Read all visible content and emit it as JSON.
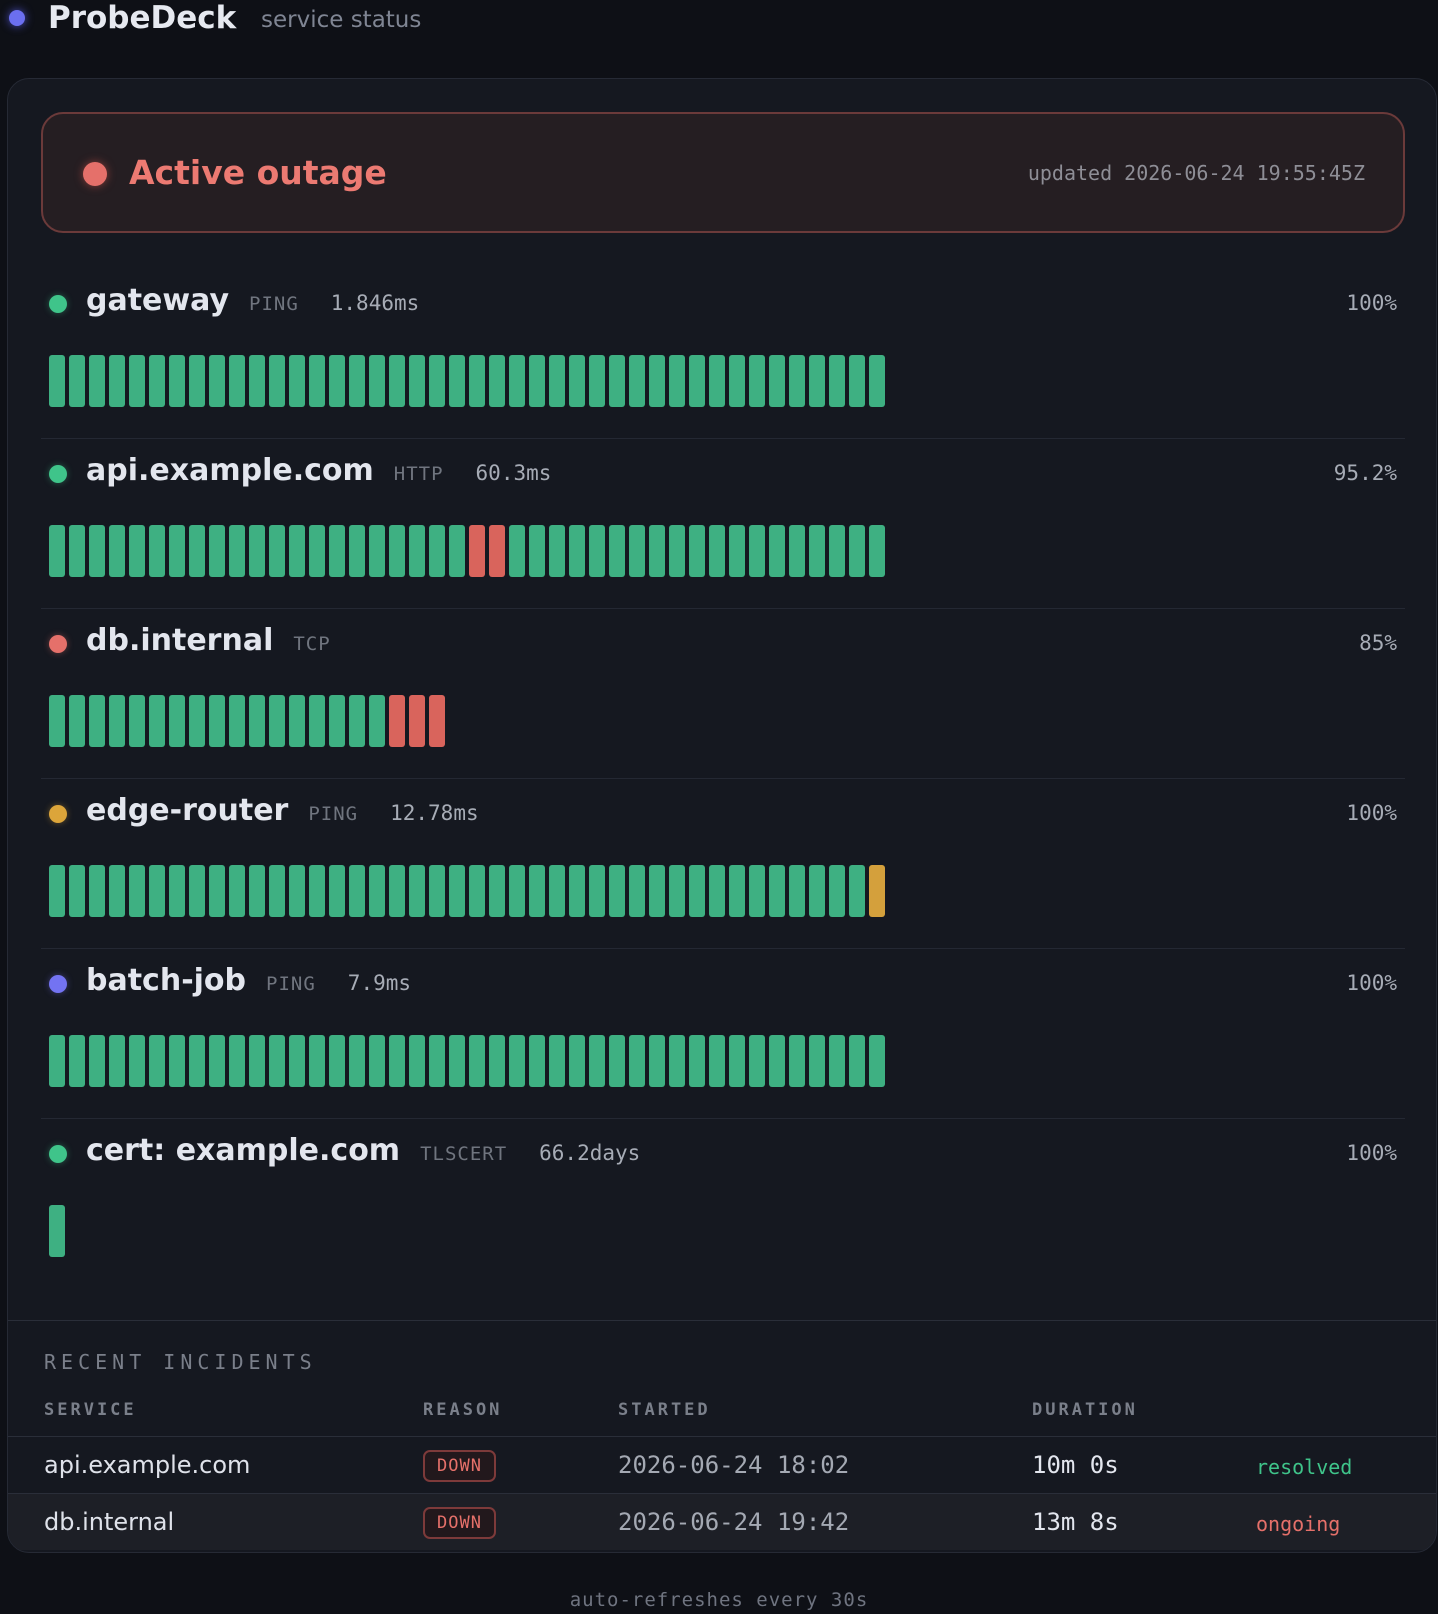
{
  "header": {
    "brand": "ProbeDeck",
    "subtitle": "service status"
  },
  "banner": {
    "title": "Active outage",
    "updated": "updated 2026-06-24 19:55:45Z",
    "color": "#e5706a"
  },
  "colors": {
    "up": "#3eb082",
    "down": "#d9645c",
    "warn": "#d4a03c",
    "paused": "#7373f2"
  },
  "services": [
    {
      "name": "gateway",
      "type": "PING",
      "latency": "1.846ms",
      "uptime": "100%",
      "status_color": "#3fc48a",
      "checks": [
        "up",
        "up",
        "up",
        "up",
        "up",
        "up",
        "up",
        "up",
        "up",
        "up",
        "up",
        "up",
        "up",
        "up",
        "up",
        "up",
        "up",
        "up",
        "up",
        "up",
        "up",
        "up",
        "up",
        "up",
        "up",
        "up",
        "up",
        "up",
        "up",
        "up",
        "up",
        "up",
        "up",
        "up",
        "up",
        "up",
        "up",
        "up",
        "up",
        "up",
        "up",
        "up"
      ]
    },
    {
      "name": "api.example.com",
      "type": "HTTP",
      "latency": "60.3ms",
      "uptime": "95.2%",
      "status_color": "#3fc48a",
      "checks": [
        "up",
        "up",
        "up",
        "up",
        "up",
        "up",
        "up",
        "up",
        "up",
        "up",
        "up",
        "up",
        "up",
        "up",
        "up",
        "up",
        "up",
        "up",
        "up",
        "up",
        "up",
        "down",
        "down",
        "up",
        "up",
        "up",
        "up",
        "up",
        "up",
        "up",
        "up",
        "up",
        "up",
        "up",
        "up",
        "up",
        "up",
        "up",
        "up",
        "up",
        "up",
        "up"
      ]
    },
    {
      "name": "db.internal",
      "type": "TCP",
      "latency": "",
      "uptime": "85%",
      "status_color": "#e5706a",
      "checks": [
        "up",
        "up",
        "up",
        "up",
        "up",
        "up",
        "up",
        "up",
        "up",
        "up",
        "up",
        "up",
        "up",
        "up",
        "up",
        "up",
        "up",
        "down",
        "down",
        "down"
      ]
    },
    {
      "name": "edge-router",
      "type": "PING",
      "latency": "12.78ms",
      "uptime": "100%",
      "status_color": "#dca53a",
      "checks": [
        "up",
        "up",
        "up",
        "up",
        "up",
        "up",
        "up",
        "up",
        "up",
        "up",
        "up",
        "up",
        "up",
        "up",
        "up",
        "up",
        "up",
        "up",
        "up",
        "up",
        "up",
        "up",
        "up",
        "up",
        "up",
        "up",
        "up",
        "up",
        "up",
        "up",
        "up",
        "up",
        "up",
        "up",
        "up",
        "up",
        "up",
        "up",
        "up",
        "up",
        "up",
        "warn"
      ]
    },
    {
      "name": "batch-job",
      "type": "PING",
      "latency": "7.9ms",
      "uptime": "100%",
      "status_color": "#7373f2",
      "checks": [
        "up",
        "up",
        "up",
        "up",
        "up",
        "up",
        "up",
        "up",
        "up",
        "up",
        "up",
        "up",
        "up",
        "up",
        "up",
        "up",
        "up",
        "up",
        "up",
        "up",
        "up",
        "up",
        "up",
        "up",
        "up",
        "up",
        "up",
        "up",
        "up",
        "up",
        "up",
        "up",
        "up",
        "up",
        "up",
        "up",
        "up",
        "up",
        "up",
        "up",
        "up",
        "up"
      ]
    },
    {
      "name": "cert: example.com",
      "type": "TLSCERT",
      "latency": "66.2days",
      "uptime": "100%",
      "status_color": "#3fc48a",
      "checks": [
        "up"
      ]
    }
  ],
  "incidents": {
    "title": "RECENT INCIDENTS",
    "columns": [
      "SERVICE",
      "REASON",
      "STARTED",
      "DURATION"
    ],
    "rows": [
      {
        "service": "api.example.com",
        "reason": "DOWN",
        "started": "2026-06-24 18:02",
        "duration": "10m 0s",
        "state": "resolved",
        "state_color": "#3fc48a"
      },
      {
        "service": "db.internal",
        "reason": "DOWN",
        "started": "2026-06-24 19:42",
        "duration": "13m 8s",
        "state": "ongoing",
        "state_color": "#e5706a"
      }
    ]
  },
  "footer": "auto-refreshes every 30s"
}
